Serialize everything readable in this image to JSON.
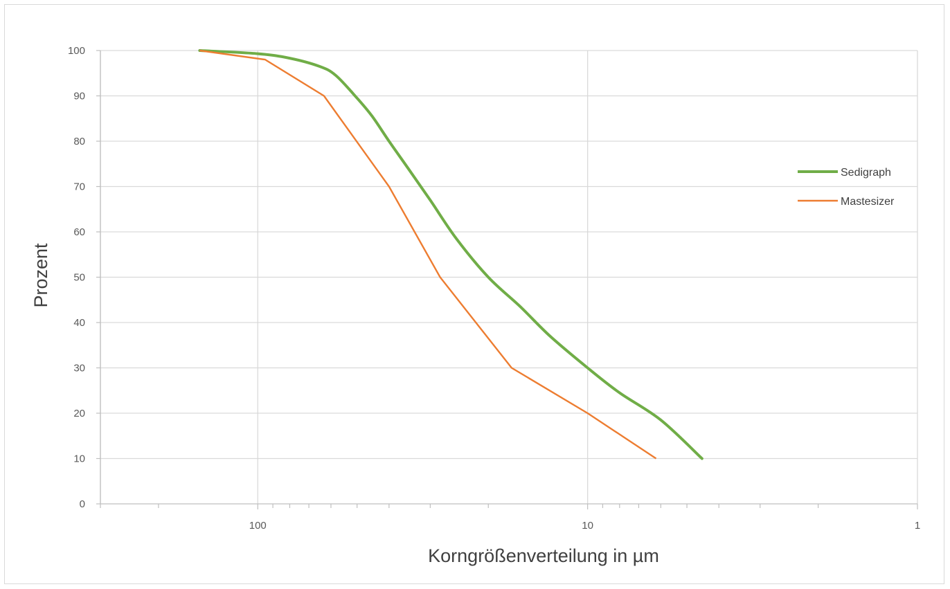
{
  "chart_data": {
    "type": "line",
    "xlabel": "Korngrößenverteilung in µm",
    "ylabel": "Prozent",
    "x_scale": "log",
    "x_reversed": true,
    "xlim": [
      300,
      1
    ],
    "ylim": [
      0,
      100
    ],
    "y_ticks": [
      0,
      10,
      20,
      30,
      40,
      50,
      60,
      70,
      80,
      90,
      100
    ],
    "y_tick_labels": [
      "0",
      "10",
      "20",
      "30",
      "40",
      "50",
      "60",
      "70",
      "80",
      "90",
      "100"
    ],
    "x_ticks": [
      100,
      10,
      1
    ],
    "x_tick_labels": [
      "100",
      "10",
      "1"
    ],
    "grid": true,
    "legend_position": "right",
    "series": [
      {
        "name": "Sedigraph",
        "color": "#70ad47",
        "points": [
          [
            150,
            100
          ],
          [
            100,
            99.3
          ],
          [
            80,
            98.3
          ],
          [
            65,
            96.5
          ],
          [
            58,
            94.5
          ],
          [
            50,
            89.5
          ],
          [
            45,
            85.5
          ],
          [
            40,
            80
          ],
          [
            35,
            74
          ],
          [
            30,
            67
          ],
          [
            25,
            58.5
          ],
          [
            20,
            50
          ],
          [
            16,
            43.5
          ],
          [
            13,
            37
          ],
          [
            10,
            30
          ],
          [
            8,
            24.5
          ],
          [
            6,
            18.5
          ],
          [
            4.5,
            10
          ]
        ]
      },
      {
        "name": "Mastesizer",
        "color": "#ed7d31",
        "points": [
          [
            150,
            100
          ],
          [
            95,
            98
          ],
          [
            63,
            90
          ],
          [
            40,
            70
          ],
          [
            28,
            50
          ],
          [
            17,
            30
          ],
          [
            10,
            20
          ],
          [
            6.2,
            10
          ]
        ]
      }
    ]
  }
}
